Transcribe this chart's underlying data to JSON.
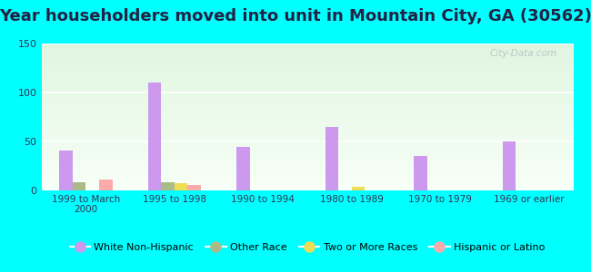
{
  "title": "Year householders moved into unit in Mountain City, GA (30562)",
  "categories": [
    "1999 to March\n2000",
    "1995 to 1998",
    "1990 to 1994",
    "1980 to 1989",
    "1970 to 1979",
    "1969 or earlier"
  ],
  "series": {
    "White Non-Hispanic": [
      41,
      110,
      44,
      65,
      35,
      50
    ],
    "Other Race": [
      8,
      8,
      0,
      0,
      0,
      0
    ],
    "Two or More Races": [
      0,
      7,
      0,
      4,
      0,
      0
    ],
    "Hispanic or Latino": [
      11,
      6,
      0,
      0,
      0,
      0
    ]
  },
  "colors": {
    "White Non-Hispanic": "#cc99ee",
    "Other Race": "#aabb88",
    "Two or More Races": "#eedd55",
    "Hispanic or Latino": "#ffaaaa"
  },
  "ylim": [
    0,
    150
  ],
  "yticks": [
    0,
    50,
    100,
    150
  ],
  "background_color": "#00ffff",
  "bar_width": 0.15,
  "title_fontsize": 13,
  "title_color": "#222244",
  "watermark": "City-Data.com"
}
